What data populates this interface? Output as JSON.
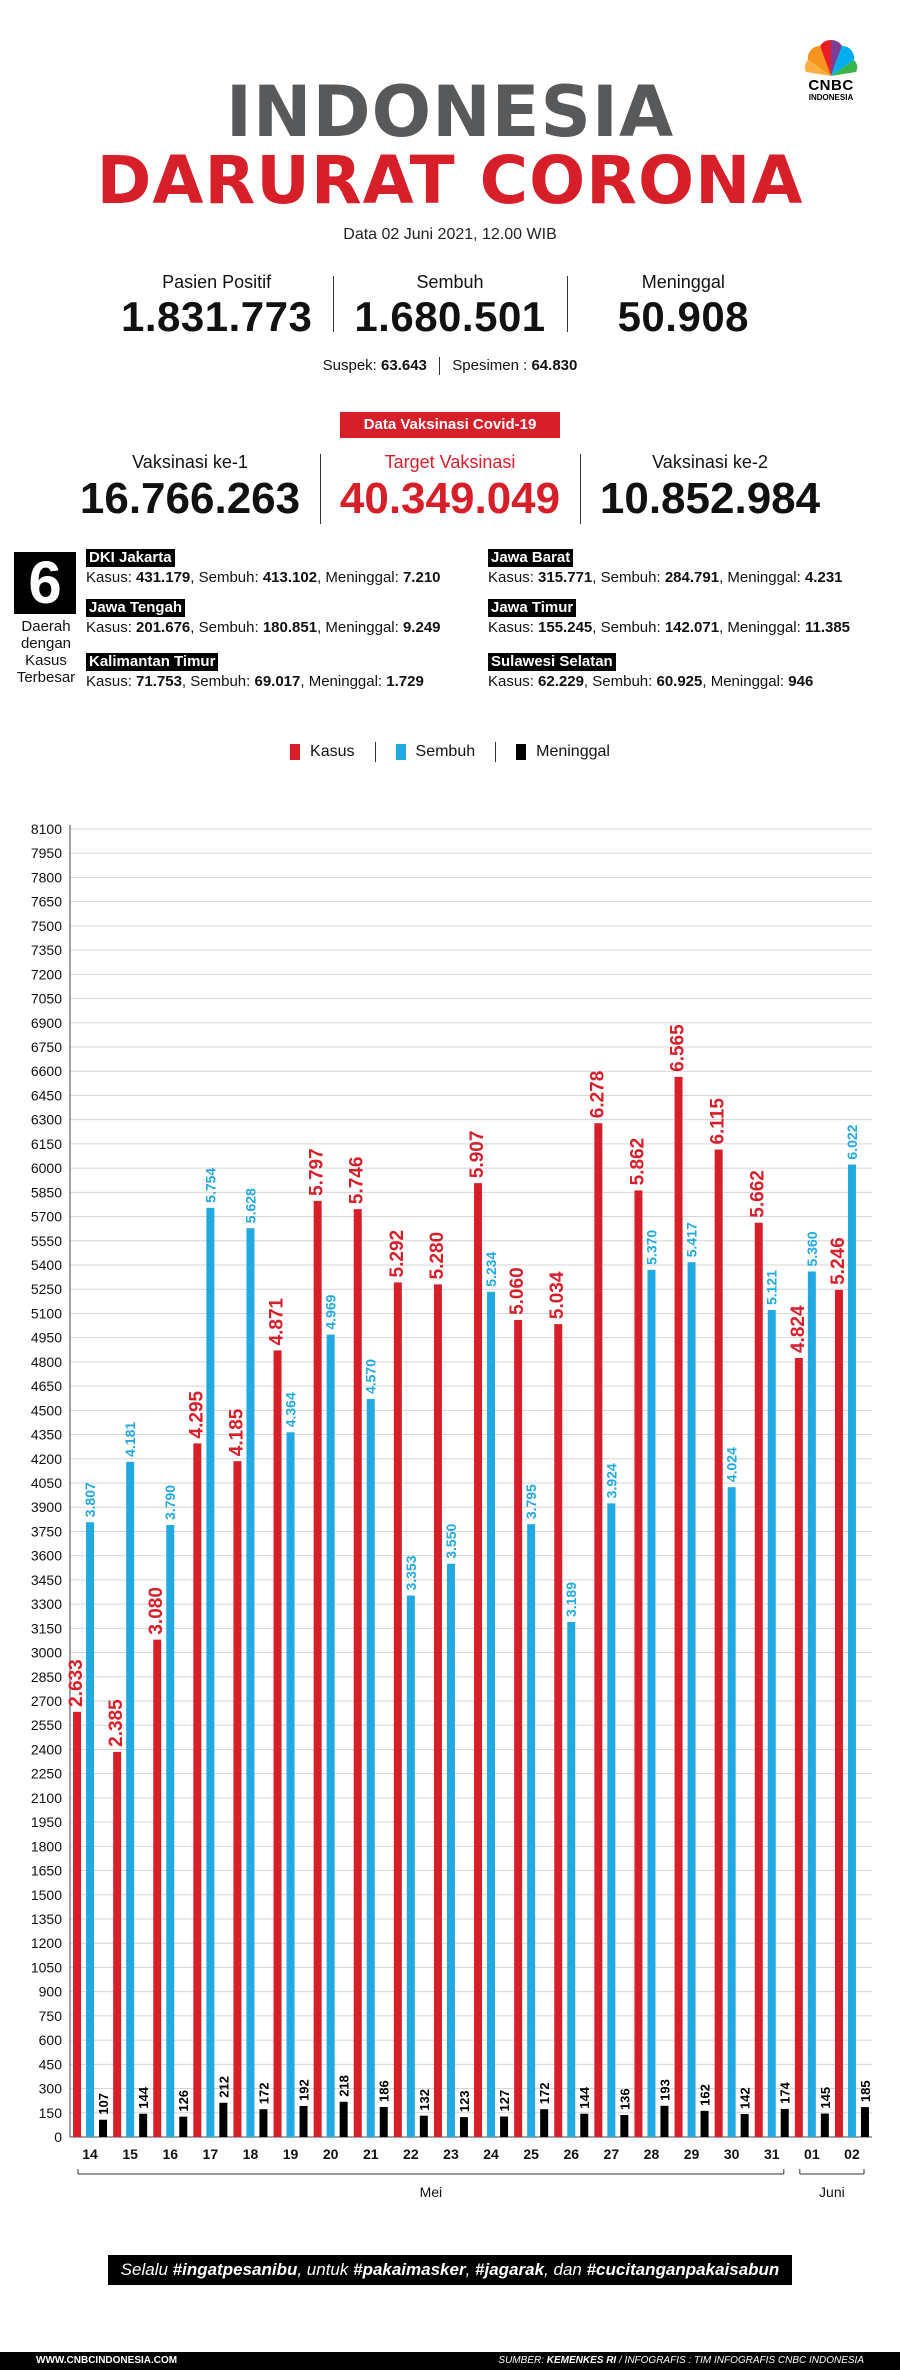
{
  "logo": {
    "line1": "CNBC",
    "line2": "INDONESIA"
  },
  "title": {
    "line1": "INDONESIA",
    "line2": "DARURAT CORONA"
  },
  "date": "Data 02 Juni 2021, 12.00 WIB",
  "stats": [
    {
      "label": "Pasien Positif",
      "value": "1.831.773"
    },
    {
      "label": "Sembuh",
      "value": "1.680.501"
    },
    {
      "label": "Meninggal",
      "value": "50.908"
    }
  ],
  "suspek": {
    "label": "Suspek:",
    "value": "63.643",
    "spesimen_label": "Spesimen :",
    "spesimen_value": "64.830"
  },
  "vaksinasi": {
    "label": "Data Vaksinasi Covid-19",
    "dose1_label": "Vaksinasi ke-1",
    "dose1_value": "16.766.263",
    "target_label": "Target Vaksinasi",
    "target_value": "40.349.049",
    "dose2_label": "Vaksinasi ke-2",
    "dose2_value": "10.852.984"
  },
  "regions_header": {
    "number": "6",
    "text": "Daerah dengan Kasus Terbesar"
  },
  "regions": [
    {
      "name": "DKI Jakarta",
      "kasus": "431.179",
      "sembuh": "413.102",
      "meninggal": "7.210"
    },
    {
      "name": "Jawa Barat",
      "kasus": "315.771",
      "sembuh": "284.791",
      "meninggal": "4.231"
    },
    {
      "name": "Jawa Tengah",
      "kasus": "201.676",
      "sembuh": "180.851",
      "meninggal": "9.249"
    },
    {
      "name": "Jawa Timur",
      "kasus": "155.245",
      "sembuh": "142.071",
      "meninggal": "11.385"
    },
    {
      "name": "Kalimantan Timur",
      "kasus": "71.753",
      "sembuh": "69.017",
      "meninggal": "1.729"
    },
    {
      "name": "Sulawesi Selatan",
      "kasus": "62.229",
      "sembuh": "60.925",
      "meninggal": "946"
    }
  ],
  "region_labels": {
    "kasus": "Kasus:",
    "sembuh": "Sembuh:",
    "meninggal": "Meninggal:"
  },
  "colors": {
    "kasus": "#d71f2a",
    "sembuh": "#22a9e1",
    "meninggal": "#000000",
    "title_grey": "#58595b"
  },
  "chart_data": {
    "type": "bar",
    "categories": [
      "14",
      "15",
      "16",
      "17",
      "18",
      "19",
      "20",
      "21",
      "22",
      "23",
      "24",
      "25",
      "26",
      "27",
      "28",
      "29",
      "30",
      "31",
      "01",
      "02"
    ],
    "group_labels": [
      {
        "label": "Mei",
        "from": 0,
        "to": 17
      },
      {
        "label": "Juni",
        "from": 18,
        "to": 19
      }
    ],
    "series": [
      {
        "name": "Kasus",
        "values": [
          2633,
          2385,
          3080,
          4295,
          4185,
          4871,
          5797,
          5746,
          5292,
          5280,
          5907,
          5060,
          5034,
          6278,
          5862,
          6565,
          6115,
          5662,
          4824,
          5246
        ],
        "labels": [
          "2.633",
          "2.385",
          "3.080",
          "4.295",
          "4.185",
          "4.871",
          "5.797",
          "5.746",
          "5.292",
          "5.280",
          "5.907",
          "5.060",
          "5.034",
          "6.278",
          "5.862",
          "6.565",
          "6.115",
          "5.662",
          "4.824",
          "5.246"
        ]
      },
      {
        "name": "Sembuh",
        "values": [
          3807,
          4181,
          3790,
          5754,
          5628,
          4364,
          4969,
          4570,
          3353,
          3550,
          5234,
          3795,
          3189,
          3924,
          5370,
          5417,
          4024,
          5121,
          5360,
          6022
        ],
        "labels": [
          "3.807",
          "4.181",
          "3.790",
          "5.754",
          "5.628",
          "4.364",
          "4.969",
          "4.570",
          "3.353",
          "3.550",
          "5.234",
          "3.795",
          "3.189",
          "3.924",
          "5.370",
          "5.417",
          "4.024",
          "5.121",
          "5.360",
          "6.022"
        ]
      },
      {
        "name": "Meninggal",
        "values": [
          107,
          144,
          126,
          212,
          172,
          192,
          218,
          186,
          132,
          123,
          127,
          172,
          144,
          136,
          193,
          162,
          142,
          174,
          145,
          185
        ],
        "labels": [
          "107",
          "144",
          "126",
          "212",
          "172",
          "192",
          "218",
          "186",
          "132",
          "123",
          "127",
          "172",
          "144",
          "136",
          "193",
          "162",
          "142",
          "174",
          "145",
          "185"
        ]
      }
    ],
    "ylim": [
      0,
      8100
    ],
    "ytick_step": 150,
    "legend": [
      "Kasus",
      "Sembuh",
      "Meninggal"
    ],
    "legend_position": "top-center",
    "grid": true
  },
  "slogan": {
    "pre": "Selalu ",
    "h1": "#ingatpesanibu",
    "mid1": ", untuk ",
    "h2": "#pakaimasker",
    "mid2": ", ",
    "h3": "#jagarak",
    "mid3": ", dan ",
    "h4": "#cucitanganpakaisabun"
  },
  "footer": {
    "left": "WWW.CNBCINDONESIA.COM",
    "right_pre": "SUMBER: ",
    "right_bold": "KEMENKES RI",
    "right_post": " / INFOGRAFIS : TIM INFOGRAFIS CNBC INDONESIA"
  }
}
